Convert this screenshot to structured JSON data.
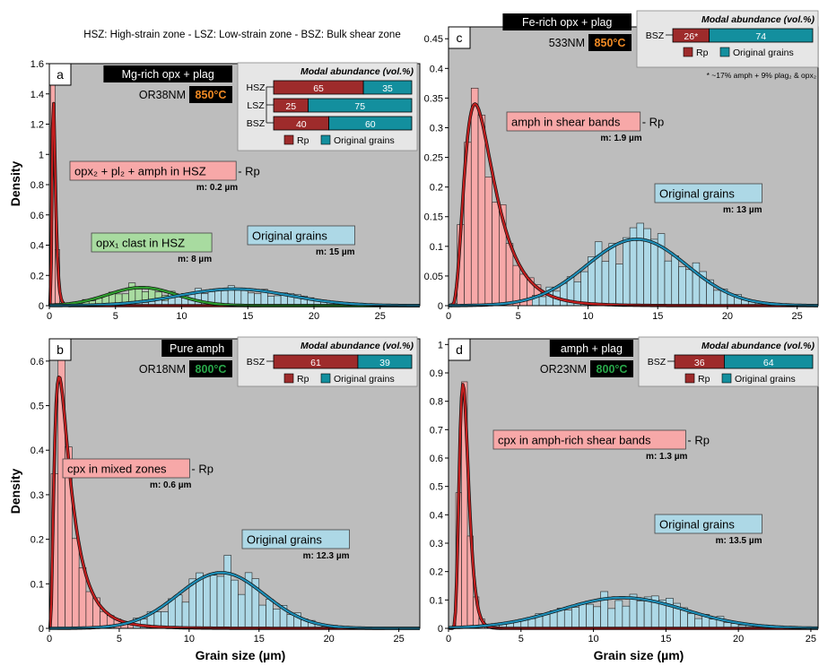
{
  "header_note": "HSZ: High-strain zone - LSZ: Low-strain zone - BSZ: Bulk shear zone",
  "shared": {
    "ylabel": "Density",
    "xlabel": "Grain size (µm)",
    "modal_title": "Modal abundance (vol.%)",
    "legend_rp": "Rp",
    "legend_orig": "Original grains",
    "colors": {
      "bg": "#bdbdbd",
      "rp_bar": "#f7a8a8",
      "rp_line": "#c41e1e",
      "orig_bar": "#add8e6",
      "orig_line": "#1e8fb8",
      "clast_bar": "#a8dba0",
      "clast_line": "#2e9e2e",
      "modal_rp": "#9e2b2b",
      "modal_orig": "#138f9e",
      "label_black": "#000000",
      "temp_orange": "#f08a24",
      "temp_green": "#29a84a"
    }
  },
  "chart_data": [
    {
      "id": "a",
      "type": "bar",
      "panel_letter": "a",
      "title": "Mg-rich opx + plag",
      "sample": "OR38NM",
      "temp": "850°C",
      "temp_color": "orange",
      "xlim": [
        0,
        28
      ],
      "ylim": [
        0,
        1.6
      ],
      "xticks": [
        0,
        5,
        10,
        15,
        20,
        25
      ],
      "yticks": [
        0,
        0.2,
        0.4,
        0.6,
        0.8,
        1,
        1.2,
        1.4,
        1.6
      ],
      "ytick_labels": [
        "0",
        "0.2",
        "0.4",
        "0.6",
        "0.8",
        "1",
        "1.2",
        "1.4",
        "1.6"
      ],
      "modal": [
        {
          "zone": "HSZ",
          "rp": "65",
          "orig": "35",
          "rp_frac": 0.65
        },
        {
          "zone": "LSZ",
          "rp": "25",
          "orig": "75",
          "rp_frac": 0.25
        },
        {
          "zone": "BSZ",
          "rp": "40",
          "orig": "60",
          "rp_frac": 0.4
        }
      ],
      "series": [
        {
          "kind": "rp",
          "dist": "lognormal",
          "mode": 0.3,
          "peak": 1.37,
          "sigma": 0.42,
          "xmax": 3
        },
        {
          "kind": "clast",
          "dist": "gauss",
          "mean": 7,
          "sd": 2.6,
          "peak": 0.12,
          "xmin": 2,
          "xmax": 20
        },
        {
          "kind": "orig",
          "dist": "gauss",
          "mean": 14,
          "sd": 4.2,
          "peak": 0.11,
          "xmin": 5,
          "xmax": 28
        }
      ],
      "labels": [
        {
          "text": "opx₂ + pl₂ + amph in HSZ",
          "kind": "rp",
          "suffix": " - Rp",
          "median": "m: 0.2 µm"
        },
        {
          "text": "opx₁ clast in HSZ",
          "kind": "clast",
          "suffix": "",
          "median": "m: 8 µm"
        },
        {
          "text": "Original grains",
          "kind": "orig",
          "suffix": "",
          "median": "m: 15 µm"
        }
      ]
    },
    {
      "id": "b",
      "type": "bar",
      "panel_letter": "b",
      "title": "Pure amph",
      "sample": "OR18NM",
      "temp": "800°C",
      "temp_color": "green",
      "xlim": [
        0,
        26.5
      ],
      "ylim": [
        0,
        0.65
      ],
      "xticks": [
        0,
        5,
        10,
        15,
        20,
        25
      ],
      "yticks": [
        0,
        0.1,
        0.2,
        0.3,
        0.4,
        0.5,
        0.6
      ],
      "ytick_labels": [
        "0",
        "0.1",
        "0.2",
        "0.3",
        "0.4",
        "0.5",
        "0.6"
      ],
      "modal": [
        {
          "zone": "BSZ",
          "rp": "61",
          "orig": "39",
          "rp_frac": 0.61
        }
      ],
      "series": [
        {
          "kind": "rp",
          "dist": "lognormal",
          "mode": 0.7,
          "peak": 0.565,
          "sigma": 0.75,
          "xmax": 12
        },
        {
          "kind": "orig",
          "dist": "gauss",
          "mean": 12.3,
          "sd": 3.1,
          "peak": 0.125,
          "xmin": 6,
          "xmax": 25
        }
      ],
      "labels": [
        {
          "text": "cpx in mixed zones",
          "kind": "rp",
          "suffix": " - Rp",
          "median": "m: 0.6 µm"
        },
        {
          "text": "Original grains",
          "kind": "orig",
          "suffix": "",
          "median": "m: 12.3 µm"
        }
      ]
    },
    {
      "id": "c",
      "type": "bar",
      "panel_letter": "c",
      "title": "Fe-rich opx + plag",
      "sample": "533NM",
      "temp": "850°C",
      "temp_color": "orange",
      "xlim": [
        0,
        26.5
      ],
      "ylim": [
        0,
        0.47
      ],
      "xticks": [
        0,
        5,
        10,
        15,
        20,
        25
      ],
      "yticks": [
        0,
        0.05,
        0.1,
        0.15,
        0.2,
        0.25,
        0.3,
        0.35,
        0.4,
        0.45
      ],
      "ytick_labels": [
        "0",
        "0.05",
        "0.1",
        "0.15",
        "0.2",
        "0.25",
        "0.3",
        "0.35",
        "0.4",
        "0.45"
      ],
      "modal": [
        {
          "zone": "BSZ",
          "rp": "26*",
          "orig": "74",
          "rp_frac": 0.26
        }
      ],
      "footnote": "* ~17% amph + 9% plag₂ & opx₂",
      "series": [
        {
          "kind": "rp",
          "dist": "lognormal",
          "mode": 1.9,
          "peak": 0.34,
          "sigma": 0.55,
          "xmax": 16
        },
        {
          "kind": "orig",
          "dist": "gauss",
          "mean": 13.5,
          "sd": 3.6,
          "peak": 0.112,
          "xmin": 6,
          "xmax": 26
        }
      ],
      "labels": [
        {
          "text": "amph in shear bands",
          "kind": "rp",
          "suffix": " - Rp",
          "median": "m: 1.9 µm"
        },
        {
          "text": "Original grains",
          "kind": "orig",
          "suffix": "",
          "median": "m: 13 µm"
        }
      ]
    },
    {
      "id": "d",
      "type": "bar",
      "panel_letter": "d",
      "title": "amph + plag",
      "sample": "OR23NM",
      "temp": "800°C",
      "temp_color": "green",
      "xlim": [
        0,
        25.5
      ],
      "ylim": [
        0,
        1.02
      ],
      "xticks": [
        0,
        5,
        10,
        15,
        20,
        25
      ],
      "yticks": [
        0,
        0.1,
        0.2,
        0.3,
        0.4,
        0.5,
        0.6,
        0.7,
        0.8,
        0.9,
        1
      ],
      "ytick_labels": [
        "0",
        "0.1",
        "0.2",
        "0.3",
        "0.4",
        "0.5",
        "0.6",
        "0.7",
        "0.8",
        "0.9",
        "1"
      ],
      "modal": [
        {
          "zone": "BSZ",
          "rp": "36",
          "orig": "64",
          "rp_frac": 0.36
        }
      ],
      "series": [
        {
          "kind": "rp",
          "dist": "lognormal",
          "mode": 1.0,
          "peak": 0.86,
          "sigma": 0.32,
          "xmax": 6
        },
        {
          "kind": "orig",
          "dist": "gauss",
          "mean": 12,
          "sd": 4.3,
          "peak": 0.108,
          "xmin": 3,
          "xmax": 25.5
        }
      ],
      "labels": [
        {
          "text": "cpx in amph-rich shear bands",
          "kind": "rp",
          "suffix": " - Rp",
          "median": "m: 1.3 µm"
        },
        {
          "text": "Original grains",
          "kind": "orig",
          "suffix": "",
          "median": "m: 13.5 µm"
        }
      ]
    }
  ]
}
